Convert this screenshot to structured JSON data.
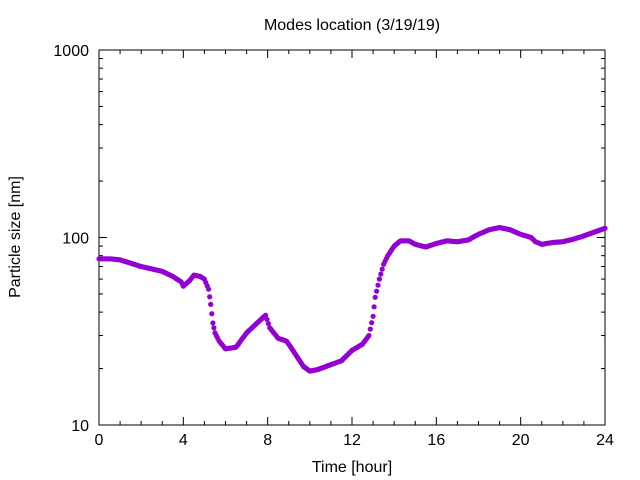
{
  "chart_data": {
    "type": "scatter",
    "title": "Modes location (3/19/19)",
    "xlabel": "Time [hour]",
    "ylabel": "Particle size [nm]",
    "xlim": [
      0,
      24
    ],
    "ylim": [
      10,
      1000
    ],
    "yscale": "log",
    "grid": false,
    "legend": "none",
    "xticks": [
      0,
      4,
      8,
      12,
      16,
      20,
      24
    ],
    "xtick_labels": [
      "0",
      "4",
      "8",
      "12",
      "16",
      "20",
      "24"
    ],
    "yticks": [
      10,
      100,
      1000
    ],
    "ytick_labels": [
      "10",
      "100",
      "1000"
    ],
    "marker_color": "#9400d3",
    "axis_color": "#000000",
    "points": [
      [
        0.0,
        77
      ],
      [
        0.5,
        77
      ],
      [
        1.0,
        76
      ],
      [
        1.5,
        73
      ],
      [
        2.0,
        70
      ],
      [
        2.5,
        68
      ],
      [
        3.0,
        66
      ],
      [
        3.5,
        62
      ],
      [
        3.9,
        58
      ],
      [
        4.0,
        55
      ],
      [
        4.3,
        59
      ],
      [
        4.5,
        63
      ],
      [
        4.8,
        62
      ],
      [
        5.0,
        60
      ],
      [
        5.2,
        53
      ],
      [
        5.3,
        44
      ],
      [
        5.4,
        35
      ],
      [
        5.5,
        31
      ],
      [
        5.7,
        28
      ],
      [
        6.0,
        25.5
      ],
      [
        6.5,
        26
      ],
      [
        7.0,
        31
      ],
      [
        7.5,
        35
      ],
      [
        7.9,
        38.5
      ],
      [
        8.1,
        33
      ],
      [
        8.5,
        29
      ],
      [
        8.9,
        28
      ],
      [
        9.3,
        24
      ],
      [
        9.7,
        20.5
      ],
      [
        10.0,
        19.4
      ],
      [
        10.4,
        19.8
      ],
      [
        11.0,
        21
      ],
      [
        11.5,
        22
      ],
      [
        12.0,
        25
      ],
      [
        12.5,
        27
      ],
      [
        12.8,
        30
      ],
      [
        13.0,
        38
      ],
      [
        13.1,
        48
      ],
      [
        13.3,
        60
      ],
      [
        13.5,
        72
      ],
      [
        13.7,
        80
      ],
      [
        14.0,
        90
      ],
      [
        14.3,
        96
      ],
      [
        14.7,
        96
      ],
      [
        15.0,
        92
      ],
      [
        15.5,
        89
      ],
      [
        16.0,
        93
      ],
      [
        16.5,
        96
      ],
      [
        17.0,
        95
      ],
      [
        17.5,
        97
      ],
      [
        18.0,
        104
      ],
      [
        18.5,
        110
      ],
      [
        19.0,
        113
      ],
      [
        19.5,
        110
      ],
      [
        20.0,
        104
      ],
      [
        20.5,
        100
      ],
      [
        20.7,
        95
      ],
      [
        21.0,
        92
      ],
      [
        21.5,
        94
      ],
      [
        22.0,
        95
      ],
      [
        22.5,
        98
      ],
      [
        23.0,
        102
      ],
      [
        23.5,
        107
      ],
      [
        24.0,
        112
      ]
    ]
  }
}
